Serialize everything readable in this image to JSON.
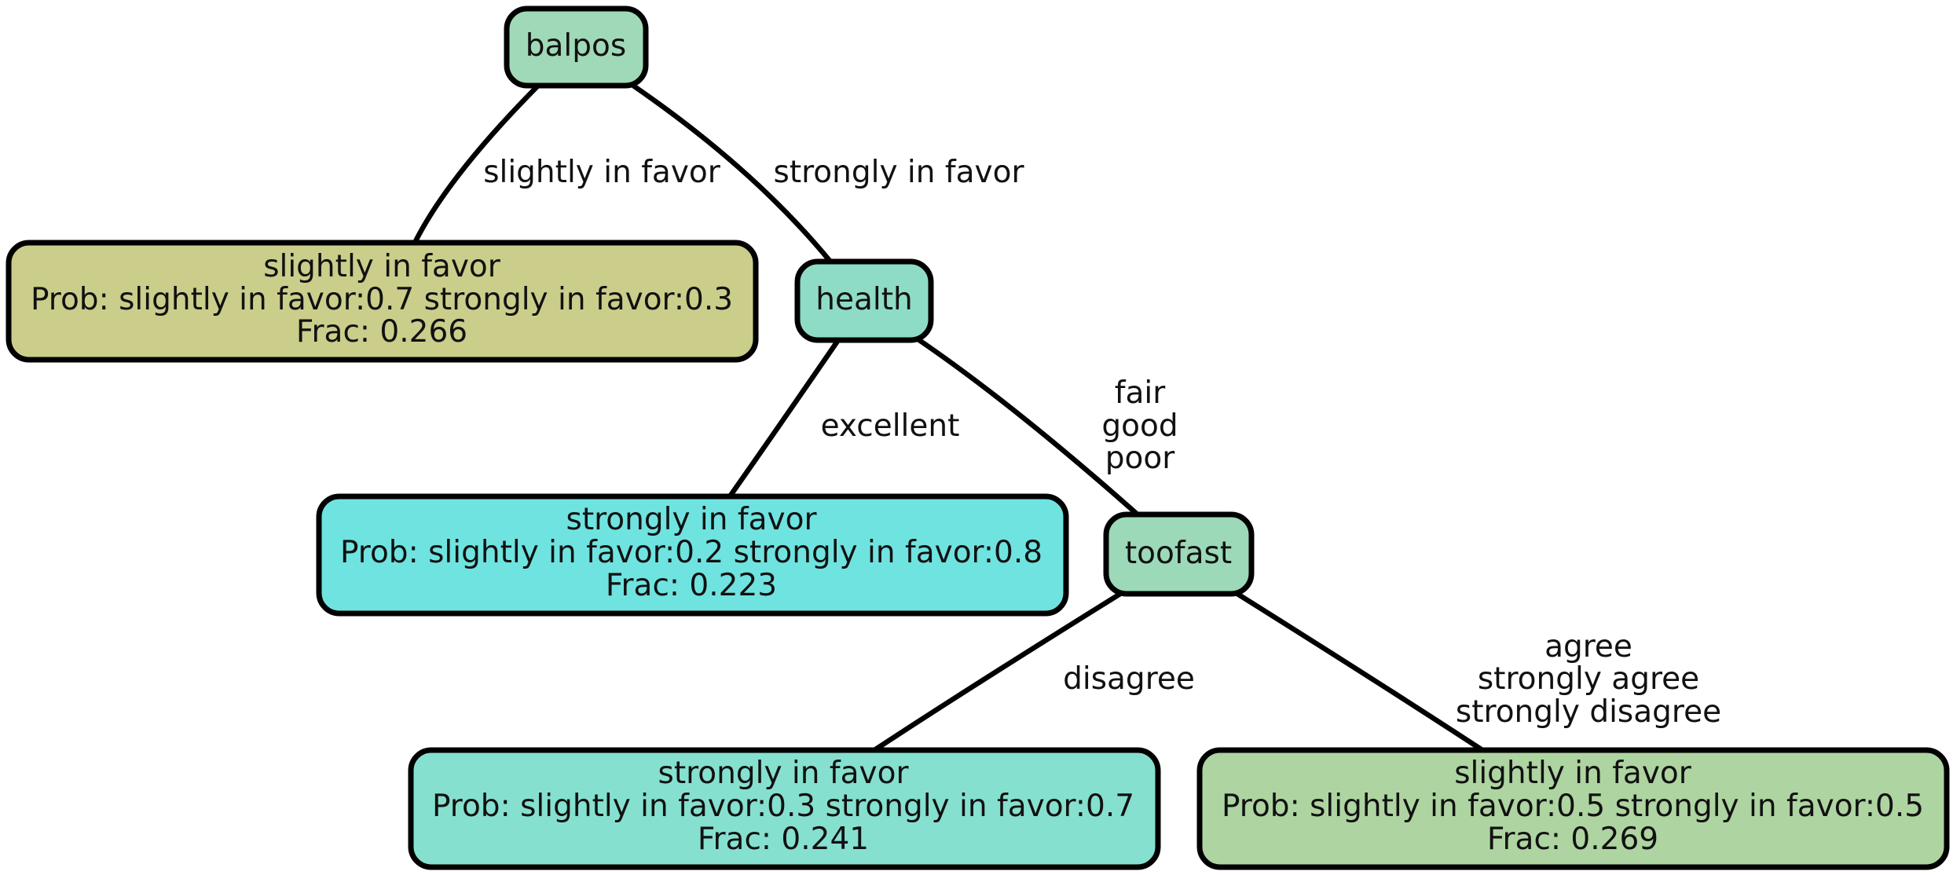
{
  "nodes": {
    "balpos": {
      "label": "balpos",
      "color": "#a0d9b8"
    },
    "health": {
      "label": "health",
      "color": "#8edcc6"
    },
    "toofast": {
      "label": "toofast",
      "color": "#9cd9b9"
    },
    "leaf1": {
      "title": "slightly in favor",
      "prob": "Prob: slightly in favor:0.7 strongly in favor:0.3",
      "frac": "Frac: 0.266",
      "color": "#cbce8b"
    },
    "leaf2": {
      "title": "strongly in favor",
      "prob": "Prob: slightly in favor:0.2 strongly in favor:0.8",
      "frac": "Frac: 0.223",
      "color": "#6fe3e0"
    },
    "leaf3": {
      "title": "strongly in favor",
      "prob": "Prob: slightly in favor:0.3 strongly in favor:0.7",
      "frac": "Frac: 0.241",
      "color": "#86e0cf"
    },
    "leaf4": {
      "title": "slightly in favor",
      "prob": "Prob: slightly in favor:0.5 strongly in favor:0.5",
      "frac": "Frac: 0.269",
      "color": "#aed4a1"
    }
  },
  "edges": {
    "balpos_leaf1": [
      "slightly in favor"
    ],
    "balpos_health": [
      "strongly in favor"
    ],
    "health_leaf2": [
      "excellent"
    ],
    "health_toofast": [
      "fair",
      "good",
      "poor"
    ],
    "toofast_leaf3": [
      "disagree"
    ],
    "toofast_leaf4": [
      "agree",
      "strongly agree",
      "strongly disagree"
    ]
  }
}
